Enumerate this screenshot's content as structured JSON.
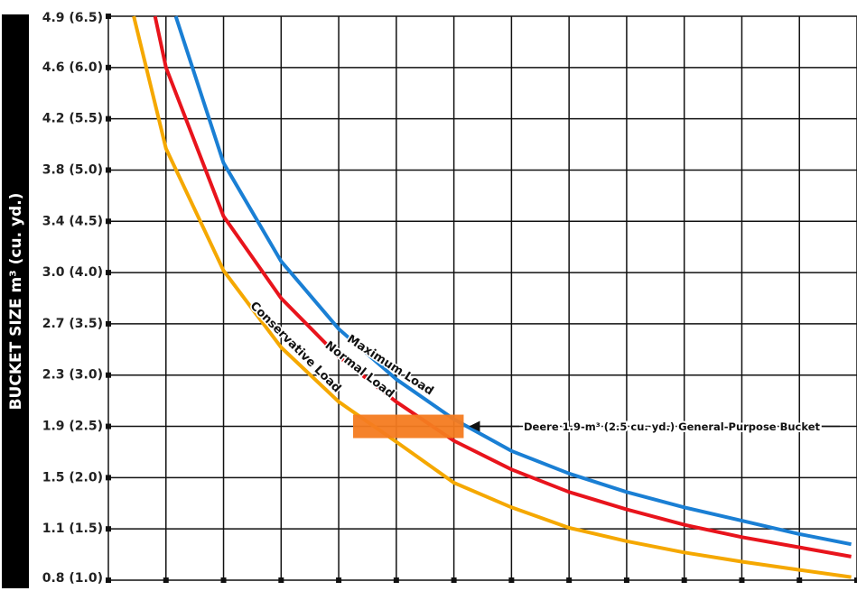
{
  "chart_data": {
    "type": "line",
    "y_label": "BUCKET SIZE m³ (cu. yd.)",
    "ylim": [
      1.0,
      6.5
    ],
    "yticks": [
      {
        "value": 1.0,
        "label": "0.8 (1.0)"
      },
      {
        "value": 1.5,
        "label": "1.1 (1.5)"
      },
      {
        "value": 2.0,
        "label": "1.5 (2.0)"
      },
      {
        "value": 2.5,
        "label": "1.9 (2.5)"
      },
      {
        "value": 3.0,
        "label": "2.3 (3.0)"
      },
      {
        "value": 3.5,
        "label": "2.7 (3.5)"
      },
      {
        "value": 4.0,
        "label": "3.0 (4.0)"
      },
      {
        "value": 4.5,
        "label": "3.4 (4.5)"
      },
      {
        "value": 5.0,
        "label": "3.8 (5.0)"
      },
      {
        "value": 5.5,
        "label": "4.2 (5.5)"
      },
      {
        "value": 6.0,
        "label": "4.6 (6.0)"
      },
      {
        "value": 6.5,
        "label": "4.9 (6.5)"
      }
    ],
    "xlim": [
      0,
      13
    ],
    "xticks": [
      0,
      1,
      2,
      3,
      4,
      5,
      6,
      7,
      8,
      9,
      10,
      11,
      12,
      13
    ],
    "grid": true,
    "series": [
      {
        "name": "Maximum Load",
        "color": "#1a7fd4",
        "x": [
          1.17,
          2,
          3,
          4,
          5,
          6,
          7,
          8,
          9,
          10,
          11,
          12,
          12.9
        ],
        "values": [
          6.5,
          5.07,
          4.11,
          3.45,
          2.96,
          2.57,
          2.26,
          2.04,
          1.86,
          1.71,
          1.58,
          1.45,
          1.35
        ]
      },
      {
        "name": "Normal Load",
        "color": "#e8141c",
        "x": [
          0.81,
          1,
          2,
          3,
          4,
          5,
          6,
          7,
          8,
          9,
          10,
          11,
          12,
          12.9
        ],
        "values": [
          6.5,
          6.0,
          4.55,
          3.75,
          3.18,
          2.74,
          2.36,
          2.08,
          1.86,
          1.69,
          1.54,
          1.42,
          1.32,
          1.23
        ]
      },
      {
        "name": "Conservative Load",
        "color": "#f5a800",
        "x": [
          0.44,
          1,
          2,
          3,
          4,
          5,
          6,
          7,
          8,
          9,
          10,
          11,
          12,
          12.9
        ],
        "values": [
          6.5,
          5.21,
          4.02,
          3.27,
          2.74,
          2.35,
          1.95,
          1.71,
          1.51,
          1.38,
          1.27,
          1.18,
          1.1,
          1.03
        ]
      }
    ],
    "bucket": {
      "label": "Deere 1.9-m³ (2.5 cu. yd.) General-Purpose Bucket",
      "value": 2.5,
      "x_range": [
        4.25,
        6.17
      ],
      "color": "#f47b20"
    }
  }
}
